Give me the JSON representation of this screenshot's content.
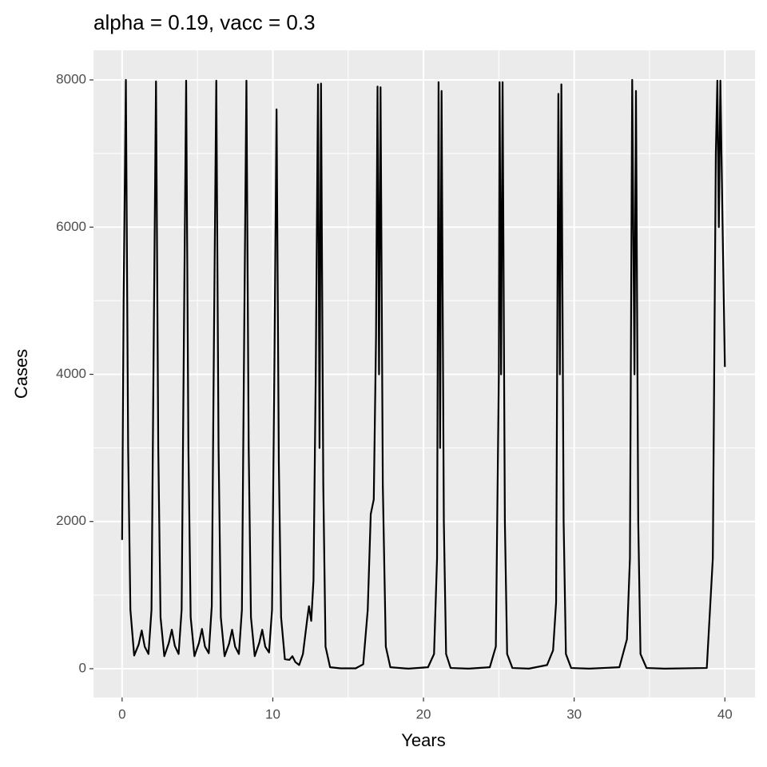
{
  "chart_data": {
    "type": "line",
    "title": "alpha = 0.19, vacc = 0.3",
    "x_label": "Years",
    "y_label": "Cases",
    "xlim": [
      -1.9,
      42
    ],
    "ylim": [
      -391,
      8402
    ],
    "xticks": [
      0,
      10,
      20,
      30,
      40
    ],
    "yticks": [
      0,
      2000,
      4000,
      6000,
      8000
    ],
    "minor_xticks": [
      5,
      15,
      25,
      35
    ],
    "minor_yticks": [
      1000,
      3000,
      5000,
      7000
    ],
    "grid": true,
    "series": [
      {
        "name": "Cases",
        "color": "#000000",
        "x": [
          0,
          0.1,
          0.25,
          0.4,
          0.55,
          0.8,
          1.1,
          1.3,
          1.5,
          1.75,
          1.95,
          2.1,
          2.25,
          2.4,
          2.55,
          2.8,
          3.1,
          3.3,
          3.5,
          3.75,
          3.95,
          4.1,
          4.25,
          4.4,
          4.55,
          4.8,
          5.1,
          5.3,
          5.5,
          5.75,
          5.95,
          6.1,
          6.25,
          6.4,
          6.55,
          6.8,
          7.1,
          7.3,
          7.5,
          7.75,
          7.95,
          8.1,
          8.25,
          8.4,
          8.55,
          8.8,
          9.1,
          9.3,
          9.5,
          9.75,
          9.95,
          10.1,
          10.25,
          10.4,
          10.55,
          10.8,
          11.1,
          11.3,
          11.5,
          11.75,
          12.0,
          12.3,
          12.4,
          12.55,
          12.7,
          12.85,
          13.0,
          13.1,
          13.2,
          13.35,
          13.5,
          13.8,
          14.5,
          15.5,
          16.0,
          16.3,
          16.5,
          16.7,
          16.85,
          16.95,
          17.05,
          17.15,
          17.3,
          17.5,
          17.8,
          19,
          20.3,
          20.7,
          20.9,
          21.0,
          21.1,
          21.2,
          21.35,
          21.5,
          21.8,
          23,
          24.4,
          24.8,
          25.0,
          25.05,
          25.15,
          25.25,
          25.4,
          25.55,
          25.9,
          27,
          28.2,
          28.6,
          28.8,
          28.95,
          29.05,
          29.15,
          29.3,
          29.45,
          29.8,
          31,
          33.0,
          33.5,
          33.7,
          33.85,
          34.0,
          34.1,
          34.25,
          34.4,
          34.8,
          36,
          38.8,
          39.2,
          39.4,
          39.5,
          39.6,
          39.7,
          39.85,
          40.0
        ],
        "values": [
          1750,
          5000,
          8000,
          3000,
          800,
          180,
          330,
          520,
          300,
          200,
          800,
          4500,
          7980,
          3000,
          700,
          170,
          350,
          530,
          310,
          200,
          800,
          4500,
          7990,
          3000,
          700,
          170,
          350,
          540,
          300,
          210,
          850,
          4600,
          7990,
          3000,
          700,
          170,
          340,
          530,
          300,
          200,
          800,
          4500,
          7990,
          3000,
          700,
          170,
          350,
          530,
          300,
          220,
          800,
          4000,
          7600,
          2800,
          700,
          130,
          120,
          170,
          90,
          50,
          200,
          700,
          850,
          650,
          1200,
          4000,
          7940,
          3000,
          7950,
          2500,
          300,
          20,
          5,
          5,
          60,
          800,
          2100,
          2300,
          4500,
          7910,
          4000,
          7900,
          2500,
          300,
          20,
          1,
          20,
          200,
          1500,
          7970,
          3000,
          7850,
          2000,
          200,
          10,
          1,
          20,
          300,
          4000,
          7970,
          4000,
          7970,
          2000,
          200,
          10,
          1,
          50,
          250,
          900,
          7810,
          4000,
          7940,
          2000,
          200,
          10,
          1,
          20,
          400,
          1500,
          8000,
          4000,
          7850,
          2000,
          200,
          10,
          1,
          10,
          1500,
          7000,
          7990,
          6000,
          7990,
          6000,
          4100
        ]
      }
    ]
  }
}
